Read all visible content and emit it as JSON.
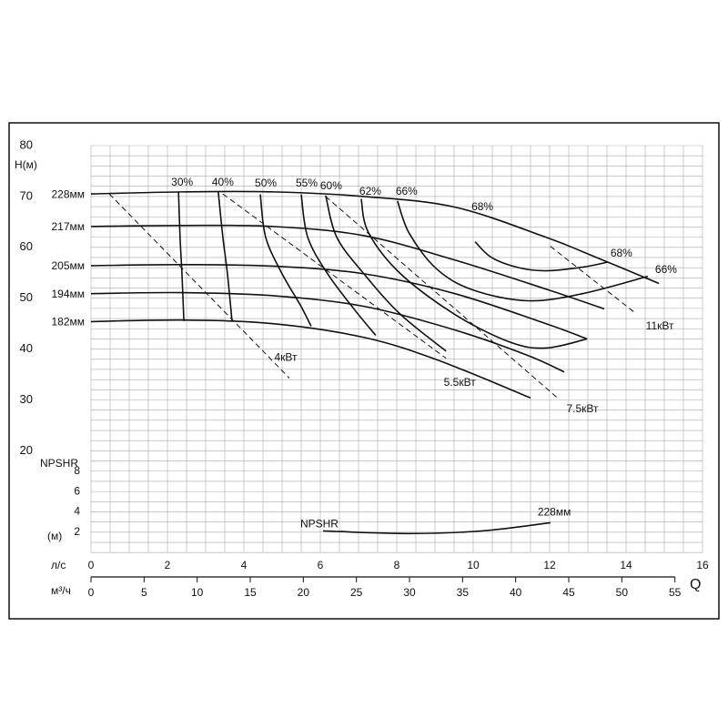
{
  "chart_data": {
    "type": "line",
    "ylabel": "H(м)",
    "ylim": [
      0,
      80
    ],
    "yticks": [
      20,
      30,
      40,
      50,
      60,
      70,
      80
    ],
    "y2label": "NPSHR",
    "y2unit": "(м)",
    "y2lim": [
      0,
      40
    ],
    "y2ticks": [
      2,
      4,
      6,
      8
    ],
    "xlabel": "л/с",
    "xlim": [
      0,
      16
    ],
    "xticks": [
      0,
      2,
      4,
      6,
      8,
      10,
      12,
      14,
      16
    ],
    "x2label": "м³/ч",
    "x2lim": [
      0,
      57.6
    ],
    "x2ticks": [
      0,
      5,
      10,
      15,
      20,
      25,
      30,
      35,
      40,
      45,
      50,
      55
    ],
    "qlabel": "Q",
    "grid": true,
    "minor_grid": {
      "x": 0.5,
      "y": 2
    },
    "impellers": [
      {
        "name": "228мм",
        "x": [
          0,
          2.38,
          4.76,
          7.14,
          9.52,
          11.9,
          13.1,
          14.86
        ],
        "values": [
          70.5,
          70.9,
          70.9,
          70,
          67.9,
          62,
          58.4,
          52.9
        ]
      },
      {
        "name": "217мм",
        "x": [
          0,
          2.38,
          4.76,
          7.14,
          9.52,
          11.9,
          13.43
        ],
        "values": [
          64.1,
          64.3,
          64.1,
          62.3,
          57.5,
          51.8,
          47.9
        ]
      },
      {
        "name": "205мм",
        "x": [
          0,
          2.38,
          4.76,
          7.14,
          9.52,
          11.9,
          12.98
        ],
        "values": [
          56.4,
          56.6,
          56.3,
          54.8,
          50.9,
          45,
          42
        ]
      },
      {
        "name": "194мм",
        "x": [
          0,
          2.38,
          4.76,
          7.14,
          9.52,
          11.43,
          12.38
        ],
        "values": [
          50.9,
          51.1,
          50.5,
          48.4,
          43.75,
          38.75,
          35.5
        ]
      },
      {
        "name": "182мм",
        "x": [
          0,
          2.38,
          4.76,
          7.14,
          9.05,
          11.5
        ],
        "values": [
          45.4,
          45.7,
          45,
          42.3,
          37.9,
          30.4
        ]
      }
    ],
    "efficiency": [
      {
        "name": "30%",
        "x": [
          2.29,
          2.33,
          2.38,
          2.43
        ],
        "values": [
          70.9,
          62,
          54.8,
          45.5
        ]
      },
      {
        "name": "40%",
        "x": [
          3.33,
          3.45,
          3.57,
          3.69
        ],
        "values": [
          70.9,
          62,
          54.8,
          45.5
        ]
      },
      {
        "name": "50%",
        "x": [
          4.43,
          4.57,
          5.0,
          5.48,
          5.76
        ],
        "values": [
          70.4,
          62,
          54.8,
          48.6,
          44.5
        ]
      },
      {
        "name": "55%",
        "x": [
          5.5,
          5.67,
          6.19,
          6.9,
          7.45
        ],
        "values": [
          70.4,
          62,
          54.8,
          47.7,
          42.7
        ]
      },
      {
        "name": "60%",
        "x": [
          6.14,
          6.43,
          7.14,
          8.1,
          9.29
        ],
        "values": [
          70.2,
          62,
          54.8,
          46.8,
          39.6
        ]
      },
      {
        "name": "62%",
        "x": [
          7.07,
          7.26,
          8.1,
          9.52,
          10.95,
          11.9,
          12.98
        ],
        "values": [
          69.5,
          62.9,
          54.8,
          46.8,
          41.4,
          40.2,
          42
        ]
      },
      {
        "name": "66%",
        "x": [
          8.02,
          8.33,
          9.05,
          10.0,
          11.43,
          12.86,
          14.57
        ],
        "values": [
          69.1,
          62.7,
          55.7,
          51.6,
          49.5,
          50.9,
          54.3
        ]
      },
      {
        "name": "68%",
        "x": [
          10.05,
          10.48,
          11.19,
          11.9,
          12.86,
          13.52
        ],
        "values": [
          61.1,
          58.0,
          56.0,
          55.4,
          56.1,
          57.1
        ]
      }
    ],
    "power": [
      {
        "name": "4кВт",
        "x": [
          0.48,
          5.19
        ],
        "values": [
          70.5,
          34.3
        ]
      },
      {
        "name": "5.5кВт",
        "x": [
          3.45,
          9.29
        ],
        "values": [
          70.5,
          38.2
        ]
      },
      {
        "name": "7.5кВт",
        "x": [
          6.14,
          12.19
        ],
        "values": [
          70,
          30.5
        ]
      },
      {
        "name": "11кВт",
        "x": [
          12.02,
          14.24
        ],
        "values": [
          60.2,
          47.1
        ]
      }
    ],
    "npshr": {
      "label": "NPSHR",
      "name": "228мм",
      "axis": "y2",
      "x": [
        6.07,
        8.33,
        10.24,
        12.02
      ],
      "values": [
        2.13,
        1.87,
        2.13,
        2.93
      ]
    }
  }
}
